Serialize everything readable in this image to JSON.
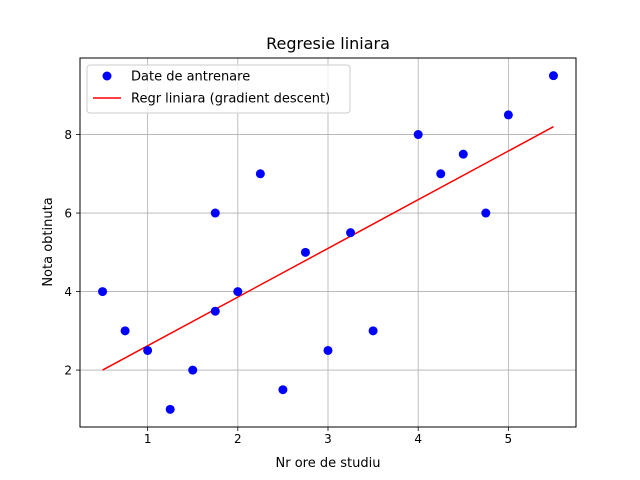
{
  "chart_data": {
    "type": "scatter",
    "title": "Regresie liniara",
    "xlabel": "Nr ore de studiu",
    "ylabel": "Nota obtinuta",
    "xlim": [
      0.25,
      5.75
    ],
    "ylim": [
      0.55,
      9.95
    ],
    "xticks": [
      1,
      2,
      3,
      4,
      5
    ],
    "yticks": [
      2,
      4,
      6,
      8
    ],
    "grid": true,
    "legend_position": "top-left",
    "series": [
      {
        "name": "Date de antrenare",
        "kind": "scatter",
        "color": "#0000ff",
        "x": [
          0.5,
          0.75,
          1.0,
          1.25,
          1.5,
          1.75,
          1.75,
          2.0,
          2.25,
          2.5,
          2.75,
          3.0,
          3.25,
          3.5,
          4.0,
          4.25,
          4.5,
          4.75,
          5.0,
          5.5
        ],
        "y": [
          4,
          3,
          2.5,
          1,
          2,
          3.5,
          6,
          4,
          7,
          1.5,
          5,
          2.5,
          5.5,
          3,
          8,
          7,
          7.5,
          6,
          8.5,
          9.5
        ]
      },
      {
        "name": "Regr liniara (gradient descent)",
        "kind": "line",
        "color": "#ff0000",
        "x": [
          0.5,
          5.5
        ],
        "y": [
          2.0,
          8.2
        ]
      }
    ]
  }
}
